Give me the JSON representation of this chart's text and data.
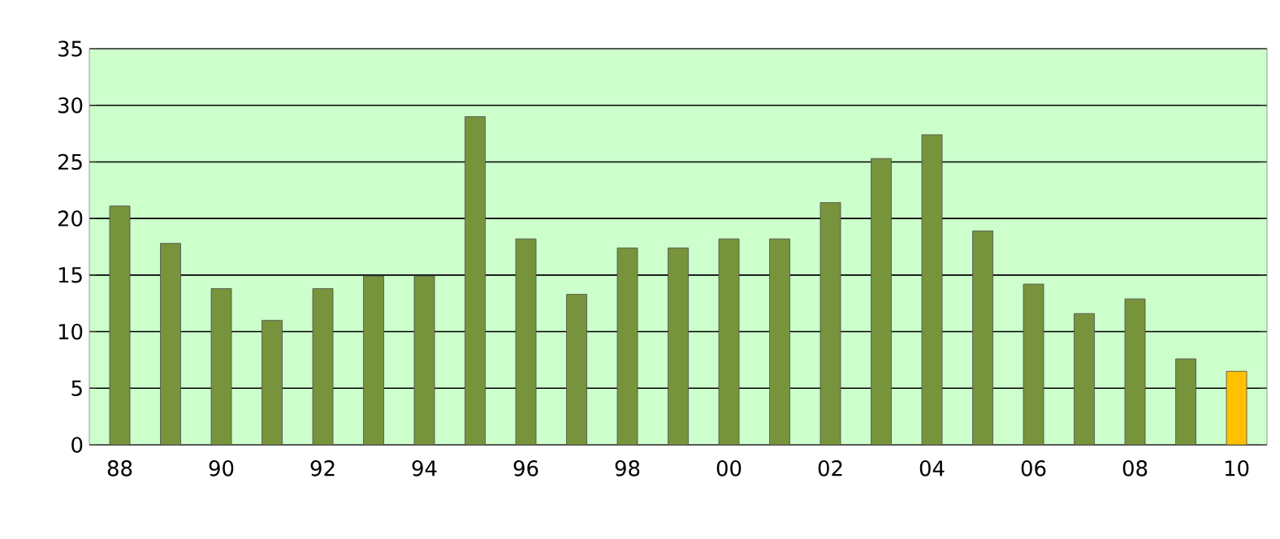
{
  "chart_data": {
    "type": "bar",
    "categories": [
      "88",
      null,
      "90",
      null,
      "92",
      null,
      "94",
      null,
      "96",
      null,
      "98",
      null,
      "00",
      null,
      "02",
      null,
      "04",
      null,
      "06",
      null,
      "08",
      null,
      "10"
    ],
    "values": [
      21.1,
      17.8,
      13.8,
      11,
      13.8,
      14.9,
      14.9,
      29,
      18.2,
      13.3,
      17.4,
      17.4,
      18.2,
      18.2,
      21.4,
      25.3,
      27.4,
      18.9,
      14.2,
      11.6,
      12.9,
      7.6,
      6.5
    ],
    "colors": [
      "#77933c",
      "#77933c",
      "#77933c",
      "#77933c",
      "#77933c",
      "#77933c",
      "#77933c",
      "#77933c",
      "#77933c",
      "#77933c",
      "#77933c",
      "#77933c",
      "#77933c",
      "#77933c",
      "#77933c",
      "#77933c",
      "#77933c",
      "#77933c",
      "#77933c",
      "#77933c",
      "#77933c",
      "#77933c",
      "#ffc000"
    ],
    "ylim": [
      0,
      35
    ],
    "yticks": [
      0,
      5,
      10,
      15,
      20,
      25,
      30,
      35
    ],
    "grid": "y"
  }
}
